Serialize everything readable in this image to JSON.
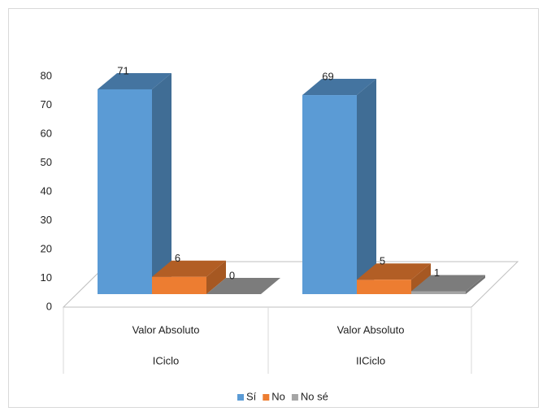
{
  "chart_data": {
    "type": "bar3d",
    "categories": [
      "Valor Absoluto",
      "Valor Absoluto"
    ],
    "groups": [
      "ICiclo",
      "IICiclo"
    ],
    "series": [
      {
        "name": "Sí",
        "color": "#5b9bd5",
        "values": [
          71,
          69
        ]
      },
      {
        "name": "No",
        "color": "#ed7d31",
        "values": [
          6,
          5
        ]
      },
      {
        "name": "No sé",
        "color": "#a5a5a5",
        "values": [
          0,
          1
        ]
      }
    ],
    "ylim": [
      0,
      80
    ],
    "yticks": [
      0,
      10,
      20,
      30,
      40,
      50,
      60,
      70,
      80
    ],
    "legend": "bottom"
  }
}
